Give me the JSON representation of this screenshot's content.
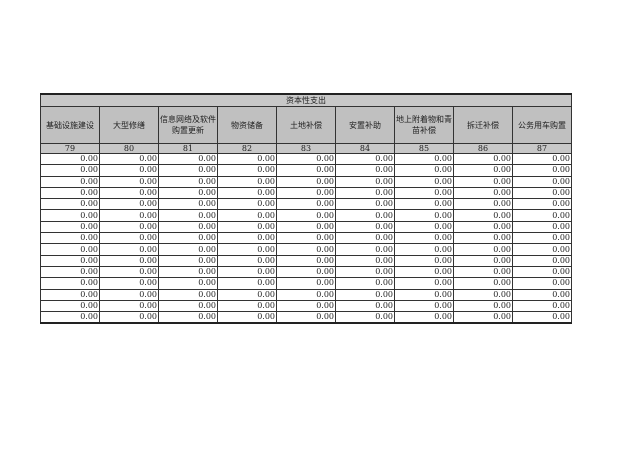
{
  "title": "资本性支出",
  "columns": [
    "基础设施建设",
    "大型修缮",
    "信息网络及软件购置更新",
    "物资储备",
    "土地补偿",
    "安置补助",
    "地上附着物和青苗补偿",
    "拆迁补偿",
    "公务用车购置"
  ],
  "codes": [
    "79",
    "80",
    "81",
    "82",
    "83",
    "84",
    "85",
    "86",
    "87"
  ],
  "row_value": "0.00",
  "row_count": 15
}
